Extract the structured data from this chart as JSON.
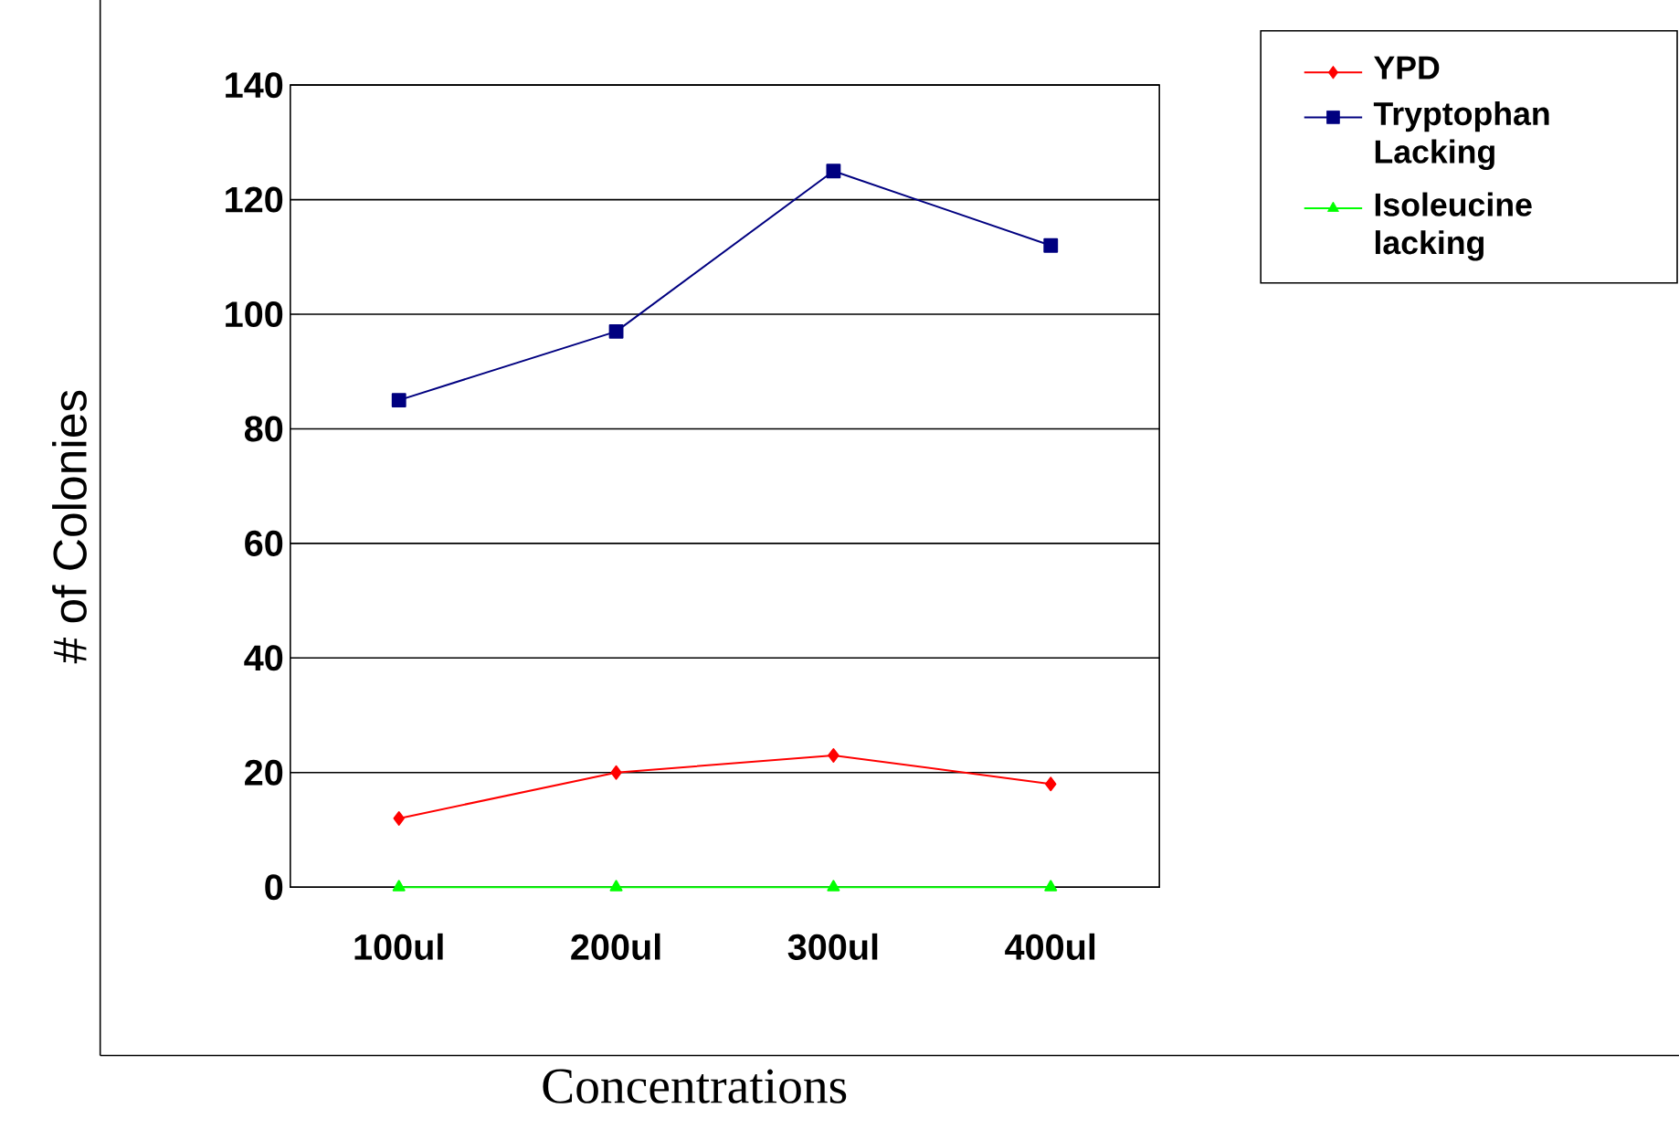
{
  "chart_data": {
    "type": "line",
    "categories": [
      "100ul",
      "200ul",
      "300ul",
      "400ul"
    ],
    "series": [
      {
        "name": "YPD",
        "color": "#ff0000",
        "marker": "diamond",
        "values": [
          12,
          20,
          23,
          18
        ]
      },
      {
        "name": "Tryptophan Lacking",
        "color": "#000080",
        "marker": "square",
        "values": [
          85,
          97,
          125,
          112
        ]
      },
      {
        "name": "Isoleucine lacking",
        "color": "#00ff00",
        "marker": "triangle",
        "values": [
          0,
          0,
          0,
          0
        ]
      }
    ],
    "xlabel": "Concentrations",
    "ylabel": "# of Colonies",
    "ylim": [
      0,
      140
    ],
    "yticks": [
      0,
      20,
      40,
      60,
      80,
      100,
      120,
      140
    ],
    "grid": "y",
    "legend": "right"
  }
}
